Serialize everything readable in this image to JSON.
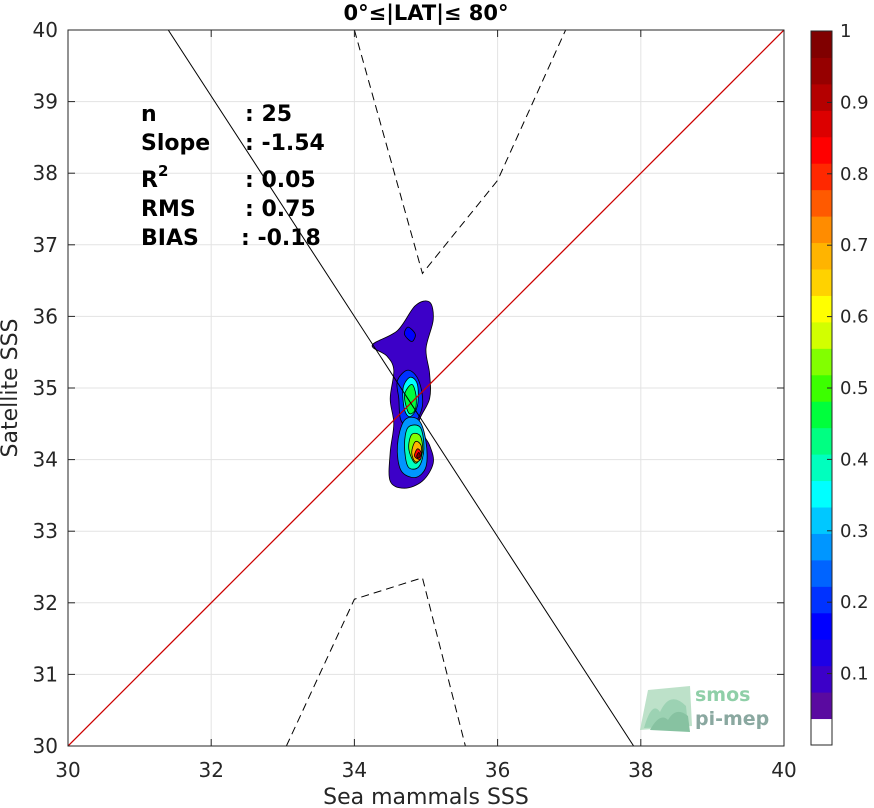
{
  "chart_data": {
    "type": "heatmap",
    "title": "0°≤|LAT|≤ 80°",
    "xlabel": "Sea mammals SSS",
    "ylabel": "Satellite SSS",
    "xlim": [
      30,
      40
    ],
    "ylim": [
      30,
      40
    ],
    "xticks": [
      30,
      32,
      34,
      36,
      38,
      40
    ],
    "yticks": [
      30,
      31,
      32,
      33,
      34,
      35,
      36,
      37,
      38,
      39,
      40
    ],
    "grid": true,
    "stats": [
      {
        "label": "n",
        "value": ": 25"
      },
      {
        "label": "Slope",
        "value": ": -1.54"
      },
      {
        "label": "R",
        "superscript": "2",
        "value": ": 0.05"
      },
      {
        "label": "RMS",
        "value": ": 0.75"
      },
      {
        "label": "BIAS",
        "value": ": -0.18"
      }
    ],
    "identity_line": {
      "x": [
        30,
        40
      ],
      "y": [
        30,
        40
      ],
      "color": "#cc0000"
    },
    "regression_line": {
      "x": [
        31.4,
        37.9
      ],
      "y": [
        40.0,
        30.0
      ],
      "color": "#000000"
    },
    "confidence_upper": {
      "x": [
        34.0,
        34.95,
        36.0,
        36.95
      ],
      "y": [
        40.0,
        36.6,
        37.9,
        40.0
      ]
    },
    "confidence_lower": {
      "x": [
        33.05,
        34.0,
        34.95,
        35.55
      ],
      "y": [
        30.0,
        32.05,
        32.35,
        30.0
      ]
    },
    "density_levels": [
      {
        "level": 0.08,
        "points": [
          [
            34.25,
            35.6
          ],
          [
            34.6,
            35.8
          ],
          [
            34.85,
            36.15
          ],
          [
            35.05,
            36.2
          ],
          [
            35.1,
            35.95
          ],
          [
            35.0,
            35.55
          ],
          [
            35.05,
            35.2
          ],
          [
            35.05,
            34.85
          ],
          [
            34.9,
            34.5
          ],
          [
            35.05,
            34.2
          ],
          [
            35.1,
            33.95
          ],
          [
            34.95,
            33.7
          ],
          [
            34.7,
            33.6
          ],
          [
            34.5,
            33.7
          ],
          [
            34.5,
            34.1
          ],
          [
            34.55,
            34.5
          ],
          [
            34.5,
            34.85
          ],
          [
            34.55,
            35.25
          ],
          [
            34.45,
            35.45
          ]
        ]
      },
      {
        "level": 0.15,
        "points": [
          [
            34.75,
            35.85
          ],
          [
            34.85,
            35.75
          ],
          [
            34.8,
            35.65
          ],
          [
            34.7,
            35.75
          ]
        ]
      },
      {
        "level": 0.2,
        "points": [
          [
            34.6,
            35.1
          ],
          [
            34.75,
            35.25
          ],
          [
            34.9,
            35.1
          ],
          [
            34.95,
            34.75
          ],
          [
            34.8,
            34.45
          ],
          [
            34.65,
            34.55
          ],
          [
            34.62,
            34.85
          ]
        ]
      },
      {
        "level": 0.25,
        "points": [
          [
            34.6,
            34.2
          ],
          [
            34.7,
            34.55
          ],
          [
            34.9,
            34.55
          ],
          [
            35.0,
            34.25
          ],
          [
            35.0,
            33.9
          ],
          [
            34.85,
            33.75
          ],
          [
            34.65,
            33.85
          ]
        ]
      },
      {
        "level": 0.35,
        "points": [
          [
            34.68,
            35.0
          ],
          [
            34.78,
            35.15
          ],
          [
            34.88,
            35.05
          ],
          [
            34.88,
            34.75
          ],
          [
            34.78,
            34.6
          ],
          [
            34.7,
            34.7
          ]
        ]
      },
      {
        "level": 0.45,
        "points": [
          [
            34.7,
            34.9
          ],
          [
            34.8,
            35.05
          ],
          [
            34.86,
            34.9
          ],
          [
            34.85,
            34.7
          ],
          [
            34.76,
            34.65
          ]
        ]
      },
      {
        "level": 0.4,
        "points": [
          [
            34.7,
            34.2
          ],
          [
            34.75,
            34.45
          ],
          [
            34.92,
            34.45
          ],
          [
            34.97,
            34.15
          ],
          [
            34.9,
            33.9
          ],
          [
            34.75,
            33.9
          ]
        ]
      },
      {
        "level": 0.55,
        "points": [
          [
            34.76,
            34.15
          ],
          [
            34.8,
            34.35
          ],
          [
            34.92,
            34.33
          ],
          [
            34.95,
            34.1
          ],
          [
            34.85,
            33.95
          ]
        ]
      },
      {
        "level": 0.7,
        "points": [
          [
            34.8,
            34.1
          ],
          [
            34.85,
            34.25
          ],
          [
            34.93,
            34.2
          ],
          [
            34.93,
            34.02
          ],
          [
            34.85,
            33.97
          ]
        ]
      },
      {
        "level": 0.85,
        "points": [
          [
            34.84,
            34.05
          ],
          [
            34.88,
            34.15
          ],
          [
            34.93,
            34.1
          ],
          [
            34.92,
            34.0
          ]
        ]
      },
      {
        "level": 1.0,
        "points": [
          [
            34.87,
            34.05
          ],
          [
            34.9,
            34.1
          ],
          [
            34.92,
            34.05
          ],
          [
            34.89,
            34.02
          ]
        ]
      }
    ],
    "colorbar": {
      "range": [
        0,
        1
      ],
      "ticks": [
        "0.1",
        "0.2",
        "0.3",
        "0.4",
        "0.5",
        "0.6",
        "0.7",
        "0.8",
        "0.9",
        "1"
      ],
      "colors": [
        "#ffffff",
        "#5a0aa0",
        "#3c00c8",
        "#1e00e6",
        "#0000ff",
        "#0032ff",
        "#0064ff",
        "#0096ff",
        "#00c8ff",
        "#00ffff",
        "#00ffbe",
        "#00ff82",
        "#00ff3c",
        "#3cff00",
        "#82ff00",
        "#d2ff00",
        "#ffff00",
        "#ffd200",
        "#ffb400",
        "#ff8c00",
        "#ff5a00",
        "#ff2800",
        "#ff0000",
        "#dc0000",
        "#b40000",
        "#960000",
        "#800000"
      ]
    }
  },
  "logo": {
    "line1": "smos",
    "line2": "pi-mep"
  }
}
